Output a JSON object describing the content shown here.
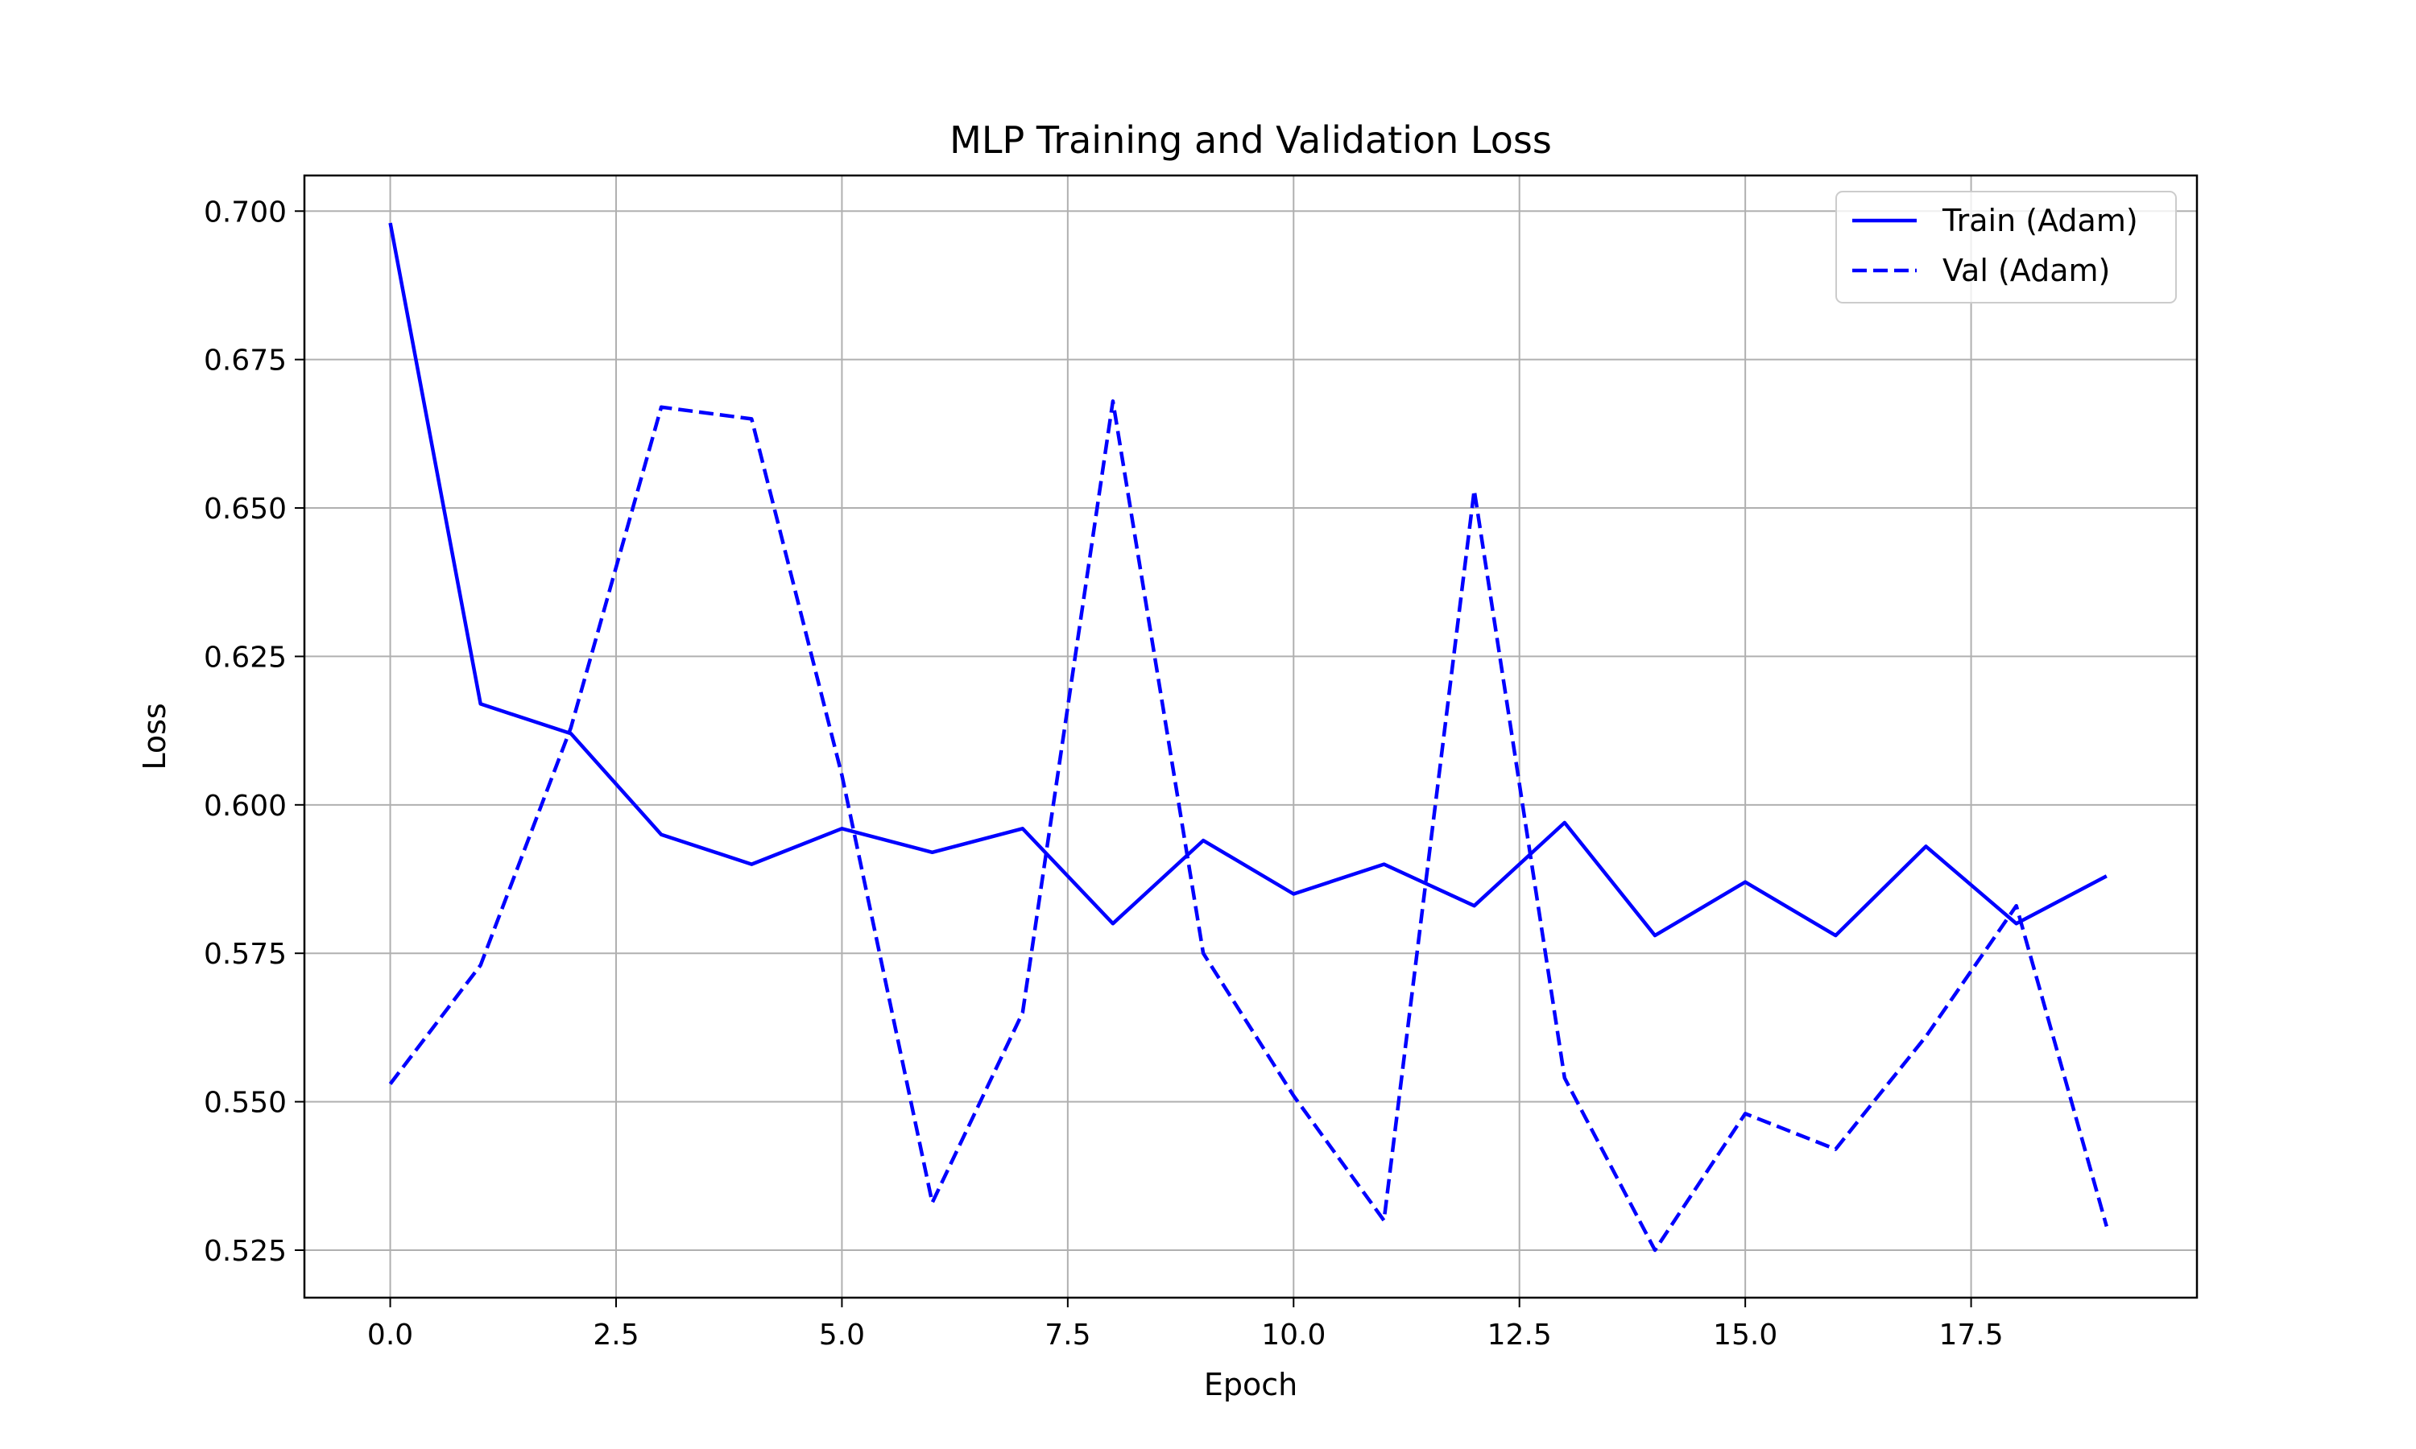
{
  "chart_data": {
    "type": "line",
    "title": "MLP Training and Validation Loss",
    "xlabel": "Epoch",
    "ylabel": "Loss",
    "xlim": [
      -0.95,
      20.0
    ],
    "ylim": [
      0.517,
      0.706
    ],
    "grid": true,
    "legend_position": "top-right",
    "xticks": [
      "0.0",
      "2.5",
      "5.0",
      "7.5",
      "10.0",
      "12.5",
      "15.0",
      "17.5"
    ],
    "yticks": [
      "0.525",
      "0.550",
      "0.575",
      "0.600",
      "0.625",
      "0.650",
      "0.675",
      "0.700"
    ],
    "x": [
      0,
      1,
      2,
      3,
      4,
      5,
      6,
      7,
      8,
      9,
      10,
      11,
      12,
      13,
      14,
      15,
      16,
      17,
      18,
      19
    ],
    "series": [
      {
        "name": "Train (Adam)",
        "line_style": "solid",
        "color": "#0000ff",
        "values": [
          0.698,
          0.617,
          0.612,
          0.595,
          0.59,
          0.596,
          0.592,
          0.596,
          0.58,
          0.594,
          0.585,
          0.59,
          0.583,
          0.597,
          0.578,
          0.587,
          0.578,
          0.593,
          0.58,
          0.588
        ]
      },
      {
        "name": "Val (Adam)",
        "line_style": "dashed",
        "color": "#0000ff",
        "values": [
          0.553,
          0.573,
          0.613,
          0.667,
          0.665,
          0.605,
          0.533,
          0.565,
          0.668,
          0.575,
          0.551,
          0.53,
          0.653,
          0.554,
          0.525,
          0.548,
          0.542,
          0.561,
          0.583,
          0.529
        ]
      }
    ]
  }
}
